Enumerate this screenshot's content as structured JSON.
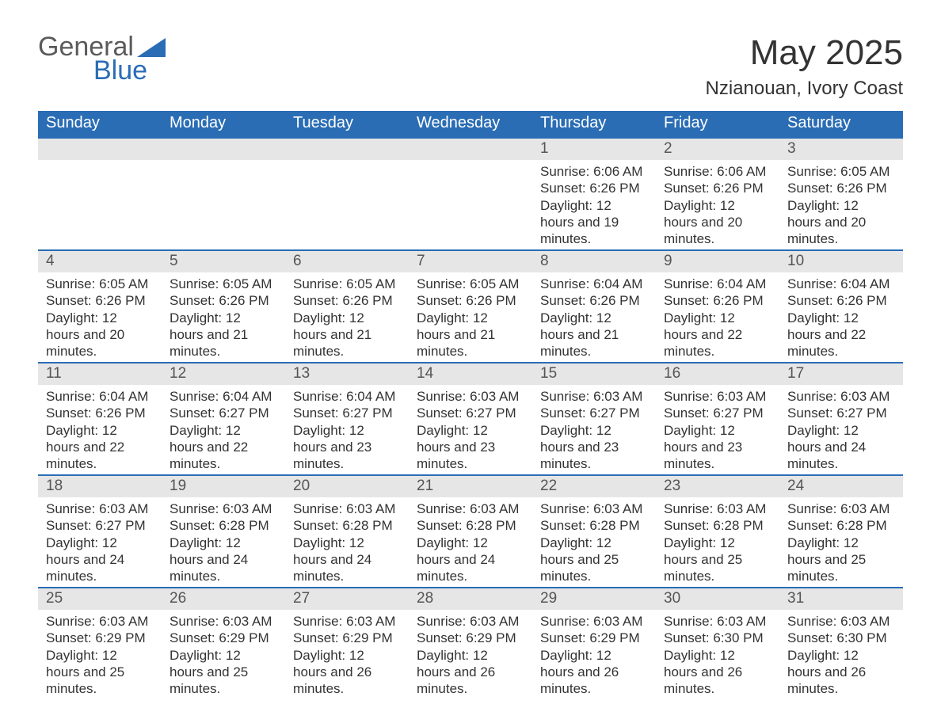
{
  "brand": {
    "part1": "General",
    "part2": "Blue",
    "color": "#2a6db5",
    "text_color": "#5a5a5a"
  },
  "title": "May 2025",
  "location": "Nzianouan, Ivory Coast",
  "columns": [
    "Sunday",
    "Monday",
    "Tuesday",
    "Wednesday",
    "Thursday",
    "Friday",
    "Saturday"
  ],
  "labels": {
    "sunrise": "Sunrise",
    "sunset": "Sunset",
    "daylight": "Daylight"
  },
  "header_bg": "#2a6db5",
  "header_fg": "#ffffff",
  "daynum_bg": "#e6e6e6",
  "page_bg": "#ffffff",
  "text_color": "#333333",
  "weeks": [
    [
      null,
      null,
      null,
      null,
      {
        "n": "1",
        "sunrise": "6:06 AM",
        "sunset": "6:26 PM",
        "daylight": "12 hours and 19 minutes."
      },
      {
        "n": "2",
        "sunrise": "6:06 AM",
        "sunset": "6:26 PM",
        "daylight": "12 hours and 20 minutes."
      },
      {
        "n": "3",
        "sunrise": "6:05 AM",
        "sunset": "6:26 PM",
        "daylight": "12 hours and 20 minutes."
      }
    ],
    [
      {
        "n": "4",
        "sunrise": "6:05 AM",
        "sunset": "6:26 PM",
        "daylight": "12 hours and 20 minutes."
      },
      {
        "n": "5",
        "sunrise": "6:05 AM",
        "sunset": "6:26 PM",
        "daylight": "12 hours and 21 minutes."
      },
      {
        "n": "6",
        "sunrise": "6:05 AM",
        "sunset": "6:26 PM",
        "daylight": "12 hours and 21 minutes."
      },
      {
        "n": "7",
        "sunrise": "6:05 AM",
        "sunset": "6:26 PM",
        "daylight": "12 hours and 21 minutes."
      },
      {
        "n": "8",
        "sunrise": "6:04 AM",
        "sunset": "6:26 PM",
        "daylight": "12 hours and 21 minutes."
      },
      {
        "n": "9",
        "sunrise": "6:04 AM",
        "sunset": "6:26 PM",
        "daylight": "12 hours and 22 minutes."
      },
      {
        "n": "10",
        "sunrise": "6:04 AM",
        "sunset": "6:26 PM",
        "daylight": "12 hours and 22 minutes."
      }
    ],
    [
      {
        "n": "11",
        "sunrise": "6:04 AM",
        "sunset": "6:26 PM",
        "daylight": "12 hours and 22 minutes."
      },
      {
        "n": "12",
        "sunrise": "6:04 AM",
        "sunset": "6:27 PM",
        "daylight": "12 hours and 22 minutes."
      },
      {
        "n": "13",
        "sunrise": "6:04 AM",
        "sunset": "6:27 PM",
        "daylight": "12 hours and 23 minutes."
      },
      {
        "n": "14",
        "sunrise": "6:03 AM",
        "sunset": "6:27 PM",
        "daylight": "12 hours and 23 minutes."
      },
      {
        "n": "15",
        "sunrise": "6:03 AM",
        "sunset": "6:27 PM",
        "daylight": "12 hours and 23 minutes."
      },
      {
        "n": "16",
        "sunrise": "6:03 AM",
        "sunset": "6:27 PM",
        "daylight": "12 hours and 23 minutes."
      },
      {
        "n": "17",
        "sunrise": "6:03 AM",
        "sunset": "6:27 PM",
        "daylight": "12 hours and 24 minutes."
      }
    ],
    [
      {
        "n": "18",
        "sunrise": "6:03 AM",
        "sunset": "6:27 PM",
        "daylight": "12 hours and 24 minutes."
      },
      {
        "n": "19",
        "sunrise": "6:03 AM",
        "sunset": "6:28 PM",
        "daylight": "12 hours and 24 minutes."
      },
      {
        "n": "20",
        "sunrise": "6:03 AM",
        "sunset": "6:28 PM",
        "daylight": "12 hours and 24 minutes."
      },
      {
        "n": "21",
        "sunrise": "6:03 AM",
        "sunset": "6:28 PM",
        "daylight": "12 hours and 24 minutes."
      },
      {
        "n": "22",
        "sunrise": "6:03 AM",
        "sunset": "6:28 PM",
        "daylight": "12 hours and 25 minutes."
      },
      {
        "n": "23",
        "sunrise": "6:03 AM",
        "sunset": "6:28 PM",
        "daylight": "12 hours and 25 minutes."
      },
      {
        "n": "24",
        "sunrise": "6:03 AM",
        "sunset": "6:28 PM",
        "daylight": "12 hours and 25 minutes."
      }
    ],
    [
      {
        "n": "25",
        "sunrise": "6:03 AM",
        "sunset": "6:29 PM",
        "daylight": "12 hours and 25 minutes."
      },
      {
        "n": "26",
        "sunrise": "6:03 AM",
        "sunset": "6:29 PM",
        "daylight": "12 hours and 25 minutes."
      },
      {
        "n": "27",
        "sunrise": "6:03 AM",
        "sunset": "6:29 PM",
        "daylight": "12 hours and 26 minutes."
      },
      {
        "n": "28",
        "sunrise": "6:03 AM",
        "sunset": "6:29 PM",
        "daylight": "12 hours and 26 minutes."
      },
      {
        "n": "29",
        "sunrise": "6:03 AM",
        "sunset": "6:29 PM",
        "daylight": "12 hours and 26 minutes."
      },
      {
        "n": "30",
        "sunrise": "6:03 AM",
        "sunset": "6:30 PM",
        "daylight": "12 hours and 26 minutes."
      },
      {
        "n": "31",
        "sunrise": "6:03 AM",
        "sunset": "6:30 PM",
        "daylight": "12 hours and 26 minutes."
      }
    ]
  ]
}
